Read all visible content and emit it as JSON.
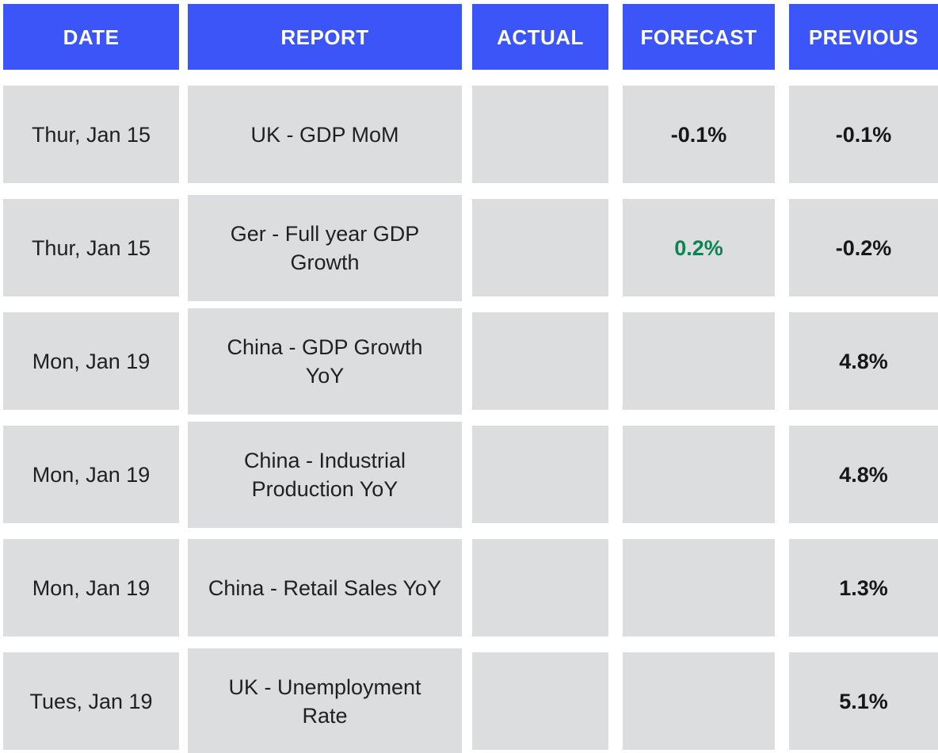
{
  "table": {
    "columns": [
      {
        "key": "date",
        "label": "DATE"
      },
      {
        "key": "report",
        "label": "REPORT"
      },
      {
        "key": "actual",
        "label": "ACTUAL"
      },
      {
        "key": "forecast",
        "label": "FORECAST"
      },
      {
        "key": "previous",
        "label": "PREVIOUS"
      }
    ],
    "rows": [
      {
        "date": "Thur, Jan 15",
        "report": "UK - GDP MoM",
        "actual": "",
        "forecast": "-0.1%",
        "previous": "-0.1%"
      },
      {
        "date": "Thur, Jan 15",
        "report": "Ger - Full year GDP\nGrowth",
        "actual": "",
        "forecast": "0.2%",
        "forecast_style": "color:#0A8552",
        "previous": "-0.2%"
      },
      {
        "date": "Mon, Jan 19",
        "report": "China - GDP Growth\nYoY",
        "actual": "",
        "forecast": "",
        "previous": "4.8%"
      },
      {
        "date": "Mon, Jan 19",
        "report": "China - Industrial\nProduction YoY",
        "actual": "",
        "forecast": "",
        "previous": "4.8%"
      },
      {
        "date": "Mon, Jan 19",
        "report": "China - Retail Sales YoY",
        "actual": "",
        "forecast": "",
        "previous": "1.3%"
      },
      {
        "date": "Tues, Jan 19",
        "report": "UK - Unemployment\nRate",
        "actual": "",
        "forecast": "",
        "previous": "5.1%"
      }
    ],
    "colors": {
      "header_bg": "#3B55F8",
      "header_text": "#FFFFFF",
      "cell_bg": "#DCDDDE",
      "text": "#1E2124",
      "value_text": "#15171A",
      "positive": "#0A8552"
    }
  }
}
